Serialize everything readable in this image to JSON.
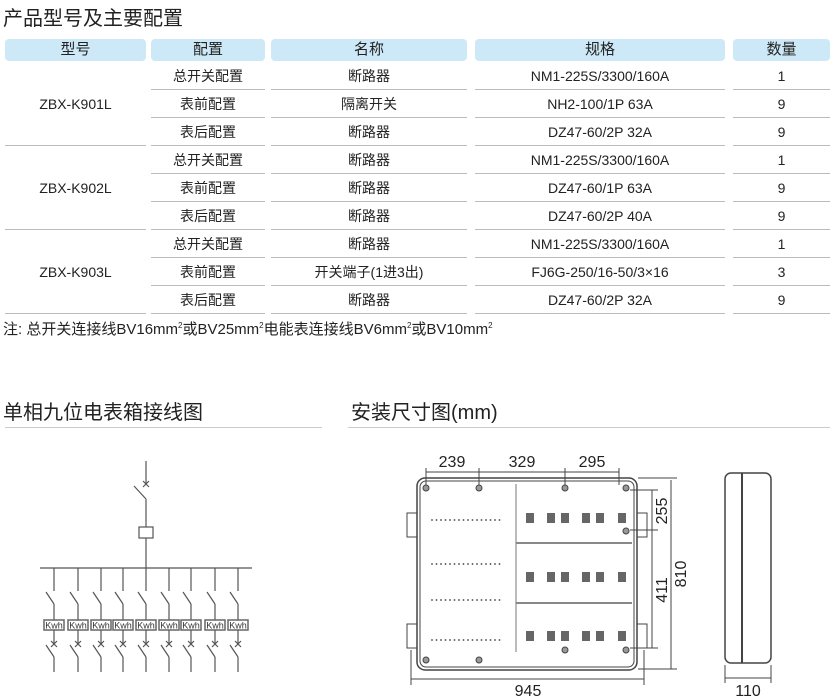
{
  "section_titles": {
    "config": "产品型号及主要配置",
    "wiring": "单相九位电表箱接线图",
    "dimensions": "安装尺寸图(mm)"
  },
  "table": {
    "headers": [
      "型号",
      "配置",
      "名称",
      "规格",
      "数量"
    ],
    "groups": [
      {
        "model": "ZBX-K901L",
        "rows": [
          [
            "总开关配置",
            "断路器",
            "NM1-225S/3300/160A",
            "1"
          ],
          [
            "表前配置",
            "隔离开关",
            "NH2-100/1P  63A",
            "9"
          ],
          [
            "表后配置",
            "断路器",
            "DZ47-60/2P  32A",
            "9"
          ]
        ]
      },
      {
        "model": "ZBX-K902L",
        "rows": [
          [
            "总开关配置",
            "断路器",
            "NM1-225S/3300/160A",
            "1"
          ],
          [
            "表前配置",
            "断路器",
            "DZ47-60/1P  63A",
            "9"
          ],
          [
            "表后配置",
            "断路器",
            "DZ47-60/2P  40A",
            "9"
          ]
        ]
      },
      {
        "model": "ZBX-K903L",
        "rows": [
          [
            "总开关配置",
            "断路器",
            "NM1-225S/3300/160A",
            "1"
          ],
          [
            "表前配置",
            "开关端子(1进3出)",
            "FJ6G-250/16-50/3×16",
            "3"
          ],
          [
            "表后配置",
            "断路器",
            "DZ47-60/2P  32A",
            "9"
          ]
        ]
      }
    ]
  },
  "note": {
    "p1": "注: 总开关连接线BV16mm",
    "p2": "或BV25mm",
    "p3": "电能表连接线BV6mm",
    "p4": "或BV10mm",
    "sup": "2"
  },
  "wiring_diagram": {
    "meter_label": "Kwh",
    "meter_count": 9
  },
  "dimensions": {
    "top_1": "239",
    "top_2": "329",
    "top_3": "295",
    "right_1": "255",
    "right_2": "411",
    "height": "810",
    "width": "945",
    "depth": "110"
  },
  "colors": {
    "header_bg": "#cde9f7"
  }
}
